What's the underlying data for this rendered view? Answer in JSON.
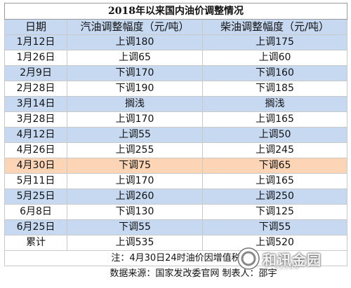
{
  "title": "2018年以来国内油价调整情况",
  "headers": {
    "date": "日期",
    "gasoline": "汽油调整幅度（元/吨）",
    "diesel": "柴油调整幅度（元/吨）"
  },
  "rows": [
    {
      "date": "1月12日",
      "gasoline": "上调180",
      "diesel": "上调175"
    },
    {
      "date": "1月26日",
      "gasoline": "上调65",
      "diesel": "上调60"
    },
    {
      "date": "2月9日",
      "gasoline": "下调170",
      "diesel": "下调160"
    },
    {
      "date": "2月28日",
      "gasoline": "下调190",
      "diesel": "下调185"
    },
    {
      "date": "3月14日",
      "gasoline": "搁浅",
      "diesel": "搁浅"
    },
    {
      "date": "3月28日",
      "gasoline": "上调170",
      "diesel": "上调165"
    },
    {
      "date": "4月12日",
      "gasoline": "上调55",
      "diesel": "上调50"
    },
    {
      "date": "4月26日",
      "gasoline": "上调255",
      "diesel": "上调245"
    },
    {
      "date": "4月30日",
      "gasoline": "下调75",
      "diesel": "下调65"
    },
    {
      "date": "5月11日",
      "gasoline": "上调170",
      "diesel": "上调165"
    },
    {
      "date": "5月25日",
      "gasoline": "上调260",
      "diesel": "上调250"
    },
    {
      "date": "6月8日",
      "gasoline": "下调130",
      "diesel": "下调125"
    },
    {
      "date": "6月25日",
      "gasoline": "下调55",
      "diesel": "下调55"
    }
  ],
  "total": {
    "date": "累计",
    "gasoline": "上调535",
    "diesel": "上调520"
  },
  "note": "注：4月30日24时油价因增值税",
  "source": "数据来源：国家发改委官网 制表人：邵宇",
  "watermark": {
    "text": "和讯金园",
    "sub": "HEXUN"
  },
  "colors": {
    "band": "#c6d9f1",
    "highlight": "#fbd5b5",
    "border": "#c9c9c9"
  }
}
